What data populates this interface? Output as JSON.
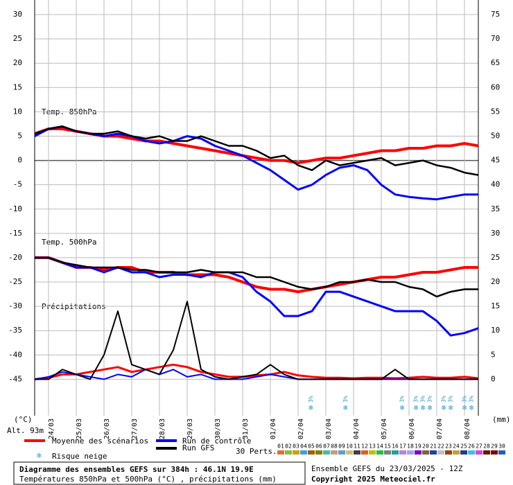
{
  "chart_data": {
    "type": "line",
    "annotations": [
      "Temp. 850hPa",
      "Temp. 500hPa",
      "Précipitations"
    ],
    "y_unit": "(°C)",
    "y2_unit": "(mm)",
    "altitude": "Alt. 93m",
    "x": [
      0,
      12,
      24,
      36,
      48,
      60,
      72,
      84,
      96,
      108,
      120,
      132,
      144,
      156,
      168,
      180,
      192,
      204,
      216,
      228,
      240,
      252,
      264,
      276,
      288,
      300,
      312,
      324,
      336,
      348,
      360,
      372,
      384
    ],
    "xlim": [
      0,
      384
    ],
    "xticks": [
      {
        "value": 12,
        "label": "24/03"
      },
      {
        "value": 36,
        "label": "25/03"
      },
      {
        "value": 60,
        "label": "26/03"
      },
      {
        "value": 84,
        "label": "27/03"
      },
      {
        "value": 108,
        "label": "28/03"
      },
      {
        "value": 132,
        "label": "29/03"
      },
      {
        "value": 156,
        "label": "30/03"
      },
      {
        "value": 180,
        "label": "31/03"
      },
      {
        "value": 204,
        "label": "01/04"
      },
      {
        "value": 228,
        "label": "02/04"
      },
      {
        "value": 252,
        "label": "03/04"
      },
      {
        "value": 276,
        "label": "04/04"
      },
      {
        "value": 300,
        "label": "05/04"
      },
      {
        "value": 324,
        "label": "06/04"
      },
      {
        "value": 348,
        "label": "07/04"
      },
      {
        "value": 372,
        "label": "08/04"
      }
    ],
    "ylim": [
      -52.5,
      33
    ],
    "yticks": [
      30,
      25,
      20,
      15,
      10,
      5,
      0,
      -5,
      -10,
      -15,
      -20,
      -25,
      -30,
      -35,
      -40,
      -45
    ],
    "y2lim": [
      -7.5,
      78
    ],
    "y2ticks": [
      75,
      70,
      65,
      60,
      55,
      50,
      45,
      40,
      35,
      30,
      25,
      20,
      15,
      10,
      5,
      0
    ],
    "grid": true,
    "series": [
      {
        "name": "Moyenne des scénarios",
        "color": "#ff0000",
        "width": 4,
        "values": [
          5.5,
          6.5,
          6.5,
          6,
          5.5,
          5,
          5,
          4.5,
          4,
          4,
          3.5,
          3,
          2.5,
          2,
          1.5,
          1,
          0.5,
          0,
          0,
          -0.5,
          0,
          0.5,
          0.5,
          1,
          1.5,
          2,
          2,
          2.5,
          2.5,
          3,
          3,
          3.5,
          3
        ]
      },
      {
        "name": "Run de contrôle",
        "color": "#0000ff",
        "width": 3,
        "values": [
          5,
          6.5,
          7,
          6,
          5.5,
          5,
          5.5,
          5,
          4,
          3.5,
          4,
          5,
          4.5,
          3,
          2,
          1,
          -0.5,
          -2,
          -4,
          -6,
          -5,
          -3,
          -1.5,
          -1,
          -2,
          -5,
          -7,
          -7.5,
          -7.8,
          -8,
          -7.5,
          -7,
          -7
        ]
      },
      {
        "name": "Run GFS",
        "color": "#000000",
        "width": 2.5,
        "values": [
          5.5,
          6.5,
          7,
          6,
          5.5,
          5.5,
          6,
          5,
          4.5,
          5,
          4,
          4,
          5,
          4,
          3,
          3,
          2,
          0.5,
          1,
          -1,
          -2,
          0,
          -1,
          -0.5,
          0,
          0.5,
          -1,
          -0.5,
          0,
          -1,
          -1.5,
          -2.5,
          -3
        ]
      },
      {
        "color": "#ff0000",
        "width": 4,
        "values": [
          -20,
          -20,
          -21,
          -22,
          -22,
          -22.5,
          -22,
          -22,
          -23,
          -23,
          -23,
          -23.5,
          -23.5,
          -23.5,
          -24,
          -25,
          -26,
          -26.5,
          -26.5,
          -27,
          -26.5,
          -26,
          -25.5,
          -25,
          -24.5,
          -24,
          -24,
          -23.5,
          -23,
          -23,
          -22.5,
          -22,
          -22
        ]
      },
      {
        "color": "#0000ff",
        "width": 3,
        "values": [
          -20,
          -20,
          -21,
          -22,
          -22,
          -23,
          -22,
          -23,
          -23,
          -24,
          -23.5,
          -23.5,
          -24,
          -23,
          -23,
          -24,
          -27,
          -29,
          -32,
          -32,
          -31,
          -27,
          -27,
          -28,
          -29,
          -30,
          -31,
          -31,
          -31,
          -33,
          -36,
          -35.5,
          -34.5
        ]
      },
      {
        "color": "#000000",
        "width": 2.5,
        "values": [
          -20,
          -20,
          -21,
          -21.5,
          -22,
          -22,
          -22,
          -22.5,
          -22.5,
          -23,
          -23,
          -23,
          -22.5,
          -23,
          -23,
          -23,
          -24,
          -24,
          -25,
          -26,
          -26.5,
          -26,
          -25,
          -25,
          -24.5,
          -25,
          -25,
          -26,
          -26.5,
          -28,
          -27,
          -26.5,
          -26.5
        ]
      },
      {
        "color": "#ff0000",
        "width": 3,
        "axis": "y2",
        "values": [
          0,
          0.3,
          1,
          1,
          1.5,
          2,
          2.5,
          1.5,
          2,
          2.5,
          3,
          2.5,
          1.5,
          1,
          0.5,
          0.5,
          0.8,
          1,
          1.5,
          0.8,
          0.5,
          0.3,
          0.3,
          0.2,
          0.3,
          0.3,
          0.2,
          0.3,
          0.5,
          0.3,
          0.3,
          0.5,
          0.2
        ]
      },
      {
        "color": "#0000ff",
        "width": 2,
        "axis": "y2",
        "values": [
          0,
          0.5,
          1.5,
          1,
          0.5,
          0,
          1,
          0.5,
          2,
          1,
          2,
          0.5,
          1,
          0,
          0,
          0,
          0.5,
          1,
          0.5,
          0,
          0,
          0,
          0,
          0,
          0,
          0,
          0,
          0,
          0,
          0,
          0,
          0,
          0
        ]
      },
      {
        "color": "#000000",
        "width": 2,
        "axis": "y2",
        "values": [
          0,
          0,
          2,
          1,
          0,
          5,
          14,
          3,
          2,
          1,
          6,
          16,
          2,
          0.5,
          0,
          0.5,
          1,
          3,
          1,
          0,
          0,
          0,
          0,
          0,
          0,
          0,
          2,
          0,
          0,
          0,
          0,
          0,
          0
        ]
      }
    ],
    "snow_risk_label": "Risque neige",
    "snow_risk": [
      {
        "x": 239,
        "label": "3%"
      },
      {
        "x": 269,
        "label": "3%"
      },
      {
        "x": 318,
        "label": "3%"
      },
      {
        "x": 330,
        "label": "3%"
      },
      {
        "x": 336,
        "label": "3%"
      },
      {
        "x": 342,
        "label": "3%"
      },
      {
        "x": 354,
        "label": "3%"
      },
      {
        "x": 360,
        "label": "3%"
      },
      {
        "x": 372,
        "label": "3%"
      },
      {
        "x": 378,
        "label": "3%"
      }
    ],
    "perts_label": "30 Perts.",
    "perts": [
      {
        "label": "01",
        "color": "#e07030"
      },
      {
        "label": "02",
        "color": "#80c040"
      },
      {
        "label": "03",
        "color": "#d0a000"
      },
      {
        "label": "04",
        "color": "#40a0e0"
      },
      {
        "label": "05",
        "color": "#a06000"
      },
      {
        "label": "06",
        "color": "#808000"
      },
      {
        "label": "07",
        "color": "#40c0a0"
      },
      {
        "label": "08",
        "color": "#c0a080"
      },
      {
        "label": "09",
        "color": "#60a0c0"
      },
      {
        "label": "10",
        "color": "#d0c080"
      },
      {
        "label": "11",
        "color": "#404040"
      },
      {
        "label": "12",
        "color": "#e06020"
      },
      {
        "label": "13",
        "color": "#c0c000"
      },
      {
        "label": "14",
        "color": "#20c040"
      },
      {
        "label": "15",
        "color": "#808080"
      },
      {
        "label": "16",
        "color": "#20a0a0"
      },
      {
        "label": "17",
        "color": "#c080e0"
      },
      {
        "label": "18",
        "color": "#a0a0ff"
      },
      {
        "label": "19",
        "color": "#8000c0"
      },
      {
        "label": "20",
        "color": "#806040"
      },
      {
        "label": "21",
        "color": "#2040a0"
      },
      {
        "label": "22",
        "color": "#c0c0c0"
      },
      {
        "label": "23",
        "color": "#a04000"
      },
      {
        "label": "24",
        "color": "#c0a040"
      },
      {
        "label": "25",
        "color": "#204080"
      },
      {
        "label": "26",
        "color": "#40c0e0"
      },
      {
        "label": "27",
        "color": "#e040e0"
      },
      {
        "label": "28",
        "color": "#602000"
      },
      {
        "label": "29",
        "color": "#800000"
      },
      {
        "label": "30",
        "color": "#2060c0"
      }
    ],
    "footer": {
      "title": "Diagramme des ensembles GEFS sur 384h : 46.1N 19.9E",
      "subtitle": "Températures 850hPa et 500hPa (°C) , précipitations (mm)",
      "run": "Ensemble GEFS du 23/03/2025 - 12Z",
      "copyright": "Copyright 2025 Meteociel.fr"
    }
  }
}
